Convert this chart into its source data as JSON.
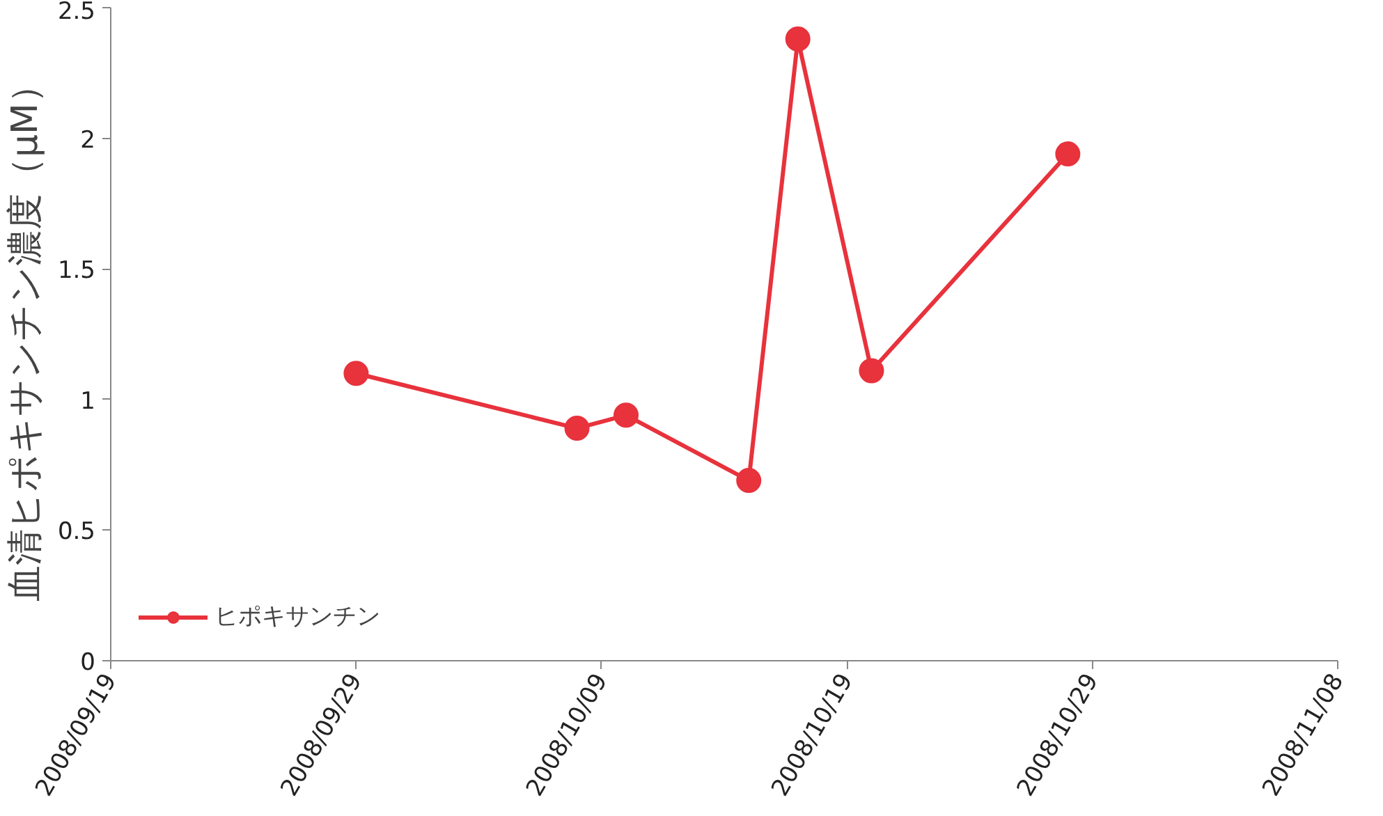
{
  "chart_data": {
    "type": "line",
    "ylabel": "血清ヒポキサンチン濃度（μM）",
    "x": [
      "2008-09-29",
      "2008-10-08",
      "2008-10-10",
      "2008-10-15",
      "2008-10-17",
      "2008-10-20",
      "2008-10-28"
    ],
    "series": [
      {
        "name": "ヒポキサンチン",
        "color": "#e8323c",
        "values": [
          1.1,
          0.89,
          0.94,
          0.69,
          2.38,
          1.11,
          1.94
        ]
      }
    ],
    "xlim": [
      "2008-09-19",
      "2008-11-08"
    ],
    "xticks": [
      {
        "value": "2008-09-19",
        "label": "2008/09/19"
      },
      {
        "value": "2008-09-29",
        "label": "2008/09/29"
      },
      {
        "value": "2008-10-09",
        "label": "2008/10/09"
      },
      {
        "value": "2008-10-19",
        "label": "2008/10/19"
      },
      {
        "value": "2008-10-29",
        "label": "2008/10/29"
      },
      {
        "value": "2008-11-08",
        "label": "2008/11/08"
      }
    ],
    "ylim": [
      0,
      2.5
    ],
    "yticks": [
      0,
      0.5,
      1,
      1.5,
      2,
      2.5
    ],
    "grid": false,
    "legend": "bottom left",
    "marker": "circle",
    "line_style": "solid"
  }
}
